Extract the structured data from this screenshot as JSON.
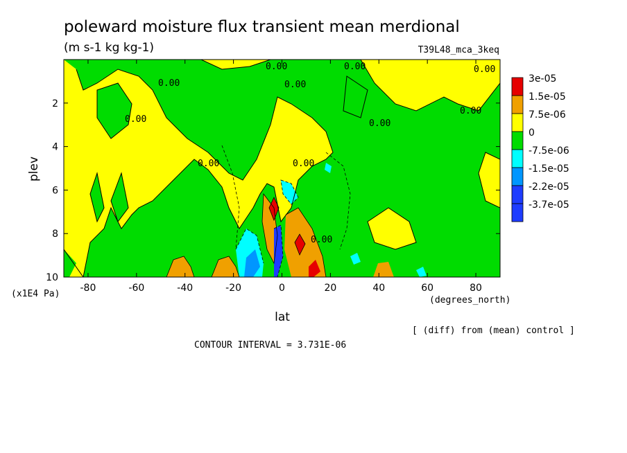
{
  "chart_data": {
    "type": "heatmap",
    "title": "poleward moisture flux transient mean merdional",
    "units": "(m s-1 kg kg-1)",
    "experiment": "T39L48_mca_3keq",
    "xlabel": "lat",
    "x_units": "(degrees_north)",
    "ylabel": "plev",
    "y_units": "(x1E4 Pa)",
    "xlim": [
      -90,
      90
    ],
    "ylim": [
      0,
      10
    ],
    "y_inverted": true,
    "x_ticks": [
      -80,
      -60,
      -40,
      -20,
      0,
      20,
      40,
      60,
      80
    ],
    "x_tick_labels": [
      "-80",
      "-60",
      "-40",
      "-20",
      "0",
      "20",
      "40",
      "60",
      "80"
    ],
    "y_ticks": [
      2,
      4,
      6,
      8,
      10
    ],
    "y_tick_labels": [
      "2",
      "4",
      "6",
      "8",
      "10"
    ],
    "legend": {
      "placement": "right",
      "levels": [
        "3e-05",
        "1.5e-05",
        "7.5e-06",
        "0",
        "-7.5e-06",
        "-1.5e-05",
        "-2.2e-05",
        "-3.7e-05"
      ],
      "colors": [
        "#e60000",
        "#f0a000",
        "#ffff00",
        "#00dc00",
        "#00ffff",
        "#0096ff",
        "#1e3cff",
        "#1e3cff"
      ]
    },
    "zero_contour_label": "0.00",
    "contour_interval": "CONTOUR INTERVAL = 3.731E-06",
    "comparison_note": "[ (diff) from (mean) control ]"
  }
}
